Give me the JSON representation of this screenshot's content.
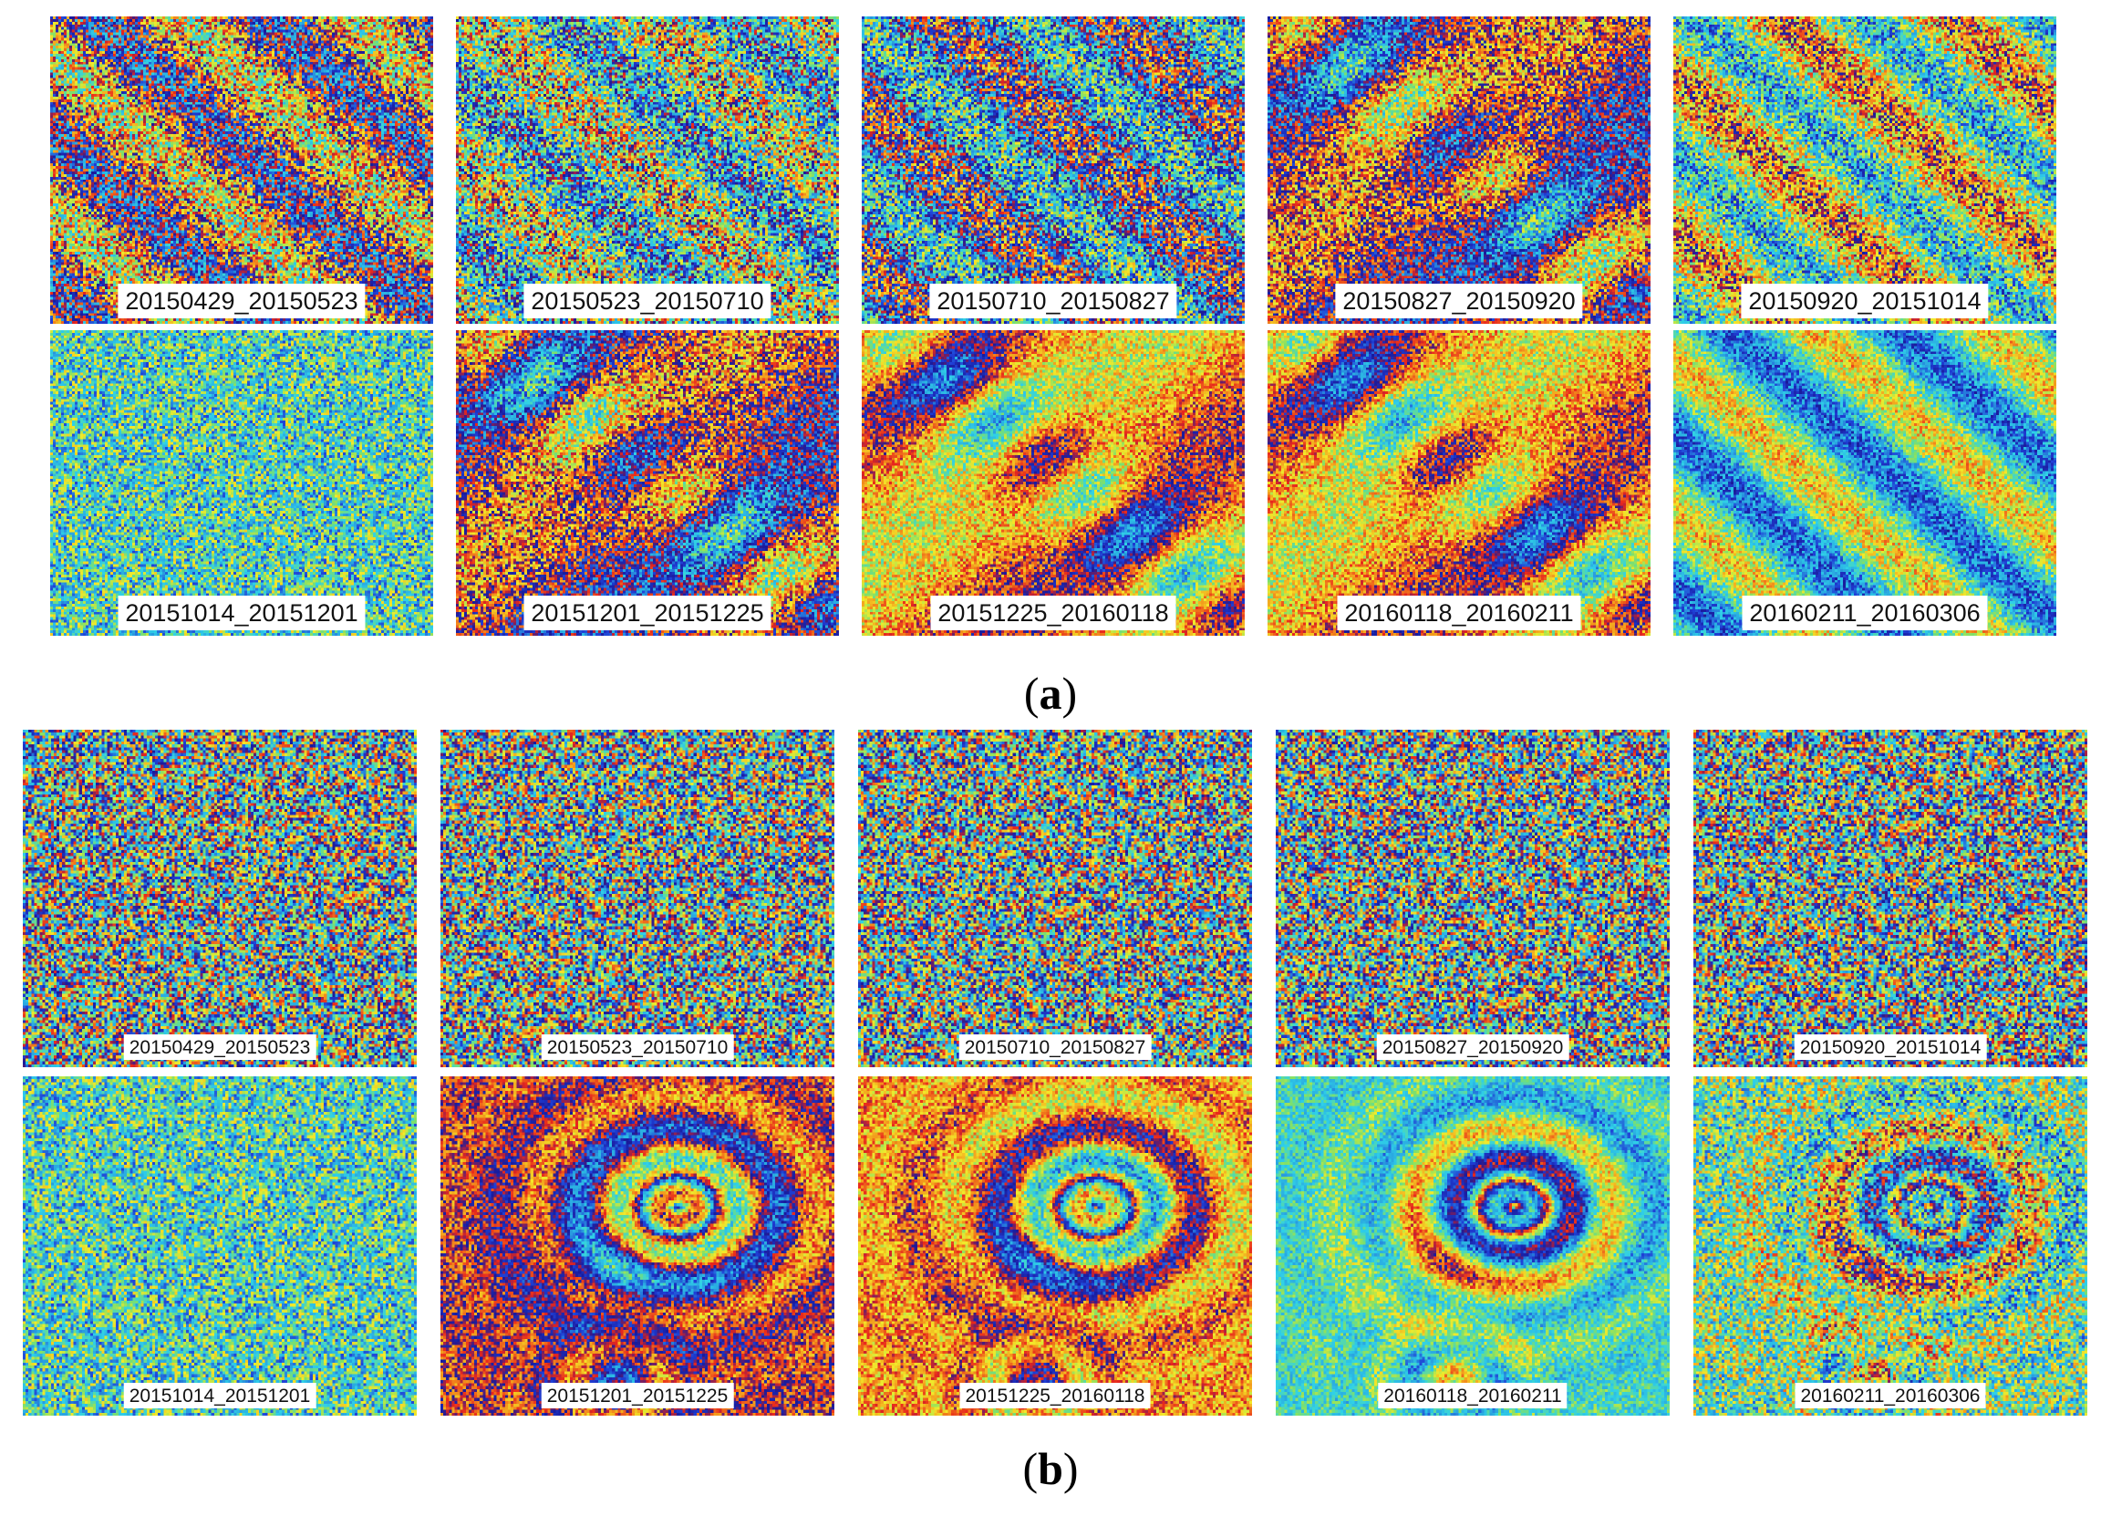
{
  "panels": [
    {
      "id": "a",
      "caption_open": "(",
      "caption_letter": "a",
      "caption_close": ")",
      "tiles": [
        {
          "label": "20150429_20150523",
          "palette": "red-dominant"
        },
        {
          "label": "20150523_20150710",
          "palette": "mixed-cyan"
        },
        {
          "label": "20150710_20150827",
          "palette": "blue-red-streaks"
        },
        {
          "label": "20150827_20150920",
          "palette": "red-blue-fringe"
        },
        {
          "label": "20150920_20151014",
          "palette": "yellow-green"
        },
        {
          "label": "20151014_20151201",
          "palette": "noise-cyan"
        },
        {
          "label": "20151201_20151225",
          "palette": "red-blue-fringe"
        },
        {
          "label": "20151225_20160118",
          "palette": "orange-yellow"
        },
        {
          "label": "20160118_20160211",
          "palette": "orange-yellow"
        },
        {
          "label": "20160211_20160306",
          "palette": "cyan-green"
        }
      ]
    },
    {
      "id": "b",
      "caption_open": "(",
      "caption_letter": "b",
      "caption_close": ")",
      "tiles": [
        {
          "label": "20150429_20150523",
          "palette": "noise"
        },
        {
          "label": "20150523_20150710",
          "palette": "noise"
        },
        {
          "label": "20150710_20150827",
          "palette": "noise"
        },
        {
          "label": "20150827_20150920",
          "palette": "noise"
        },
        {
          "label": "20150920_20151014",
          "palette": "noise"
        },
        {
          "label": "20151014_20151201",
          "palette": "noise-cyan"
        },
        {
          "label": "20151201_20151225",
          "palette": "fringes-red"
        },
        {
          "label": "20151225_20160118",
          "palette": "fringes-orange"
        },
        {
          "label": "20160118_20160211",
          "palette": "fringes-cyan"
        },
        {
          "label": "20160211_20160306",
          "palette": "fringes-faint"
        }
      ]
    }
  ],
  "colors": {
    "red": "#e8261c",
    "orange": "#f39a1c",
    "yellow": "#f2ea2a",
    "green": "#7ee06a",
    "cyan": "#2fd1e8",
    "lightblue": "#2aa6e0",
    "blue": "#1f3fd6",
    "darkblue": "#1a1a9a"
  }
}
